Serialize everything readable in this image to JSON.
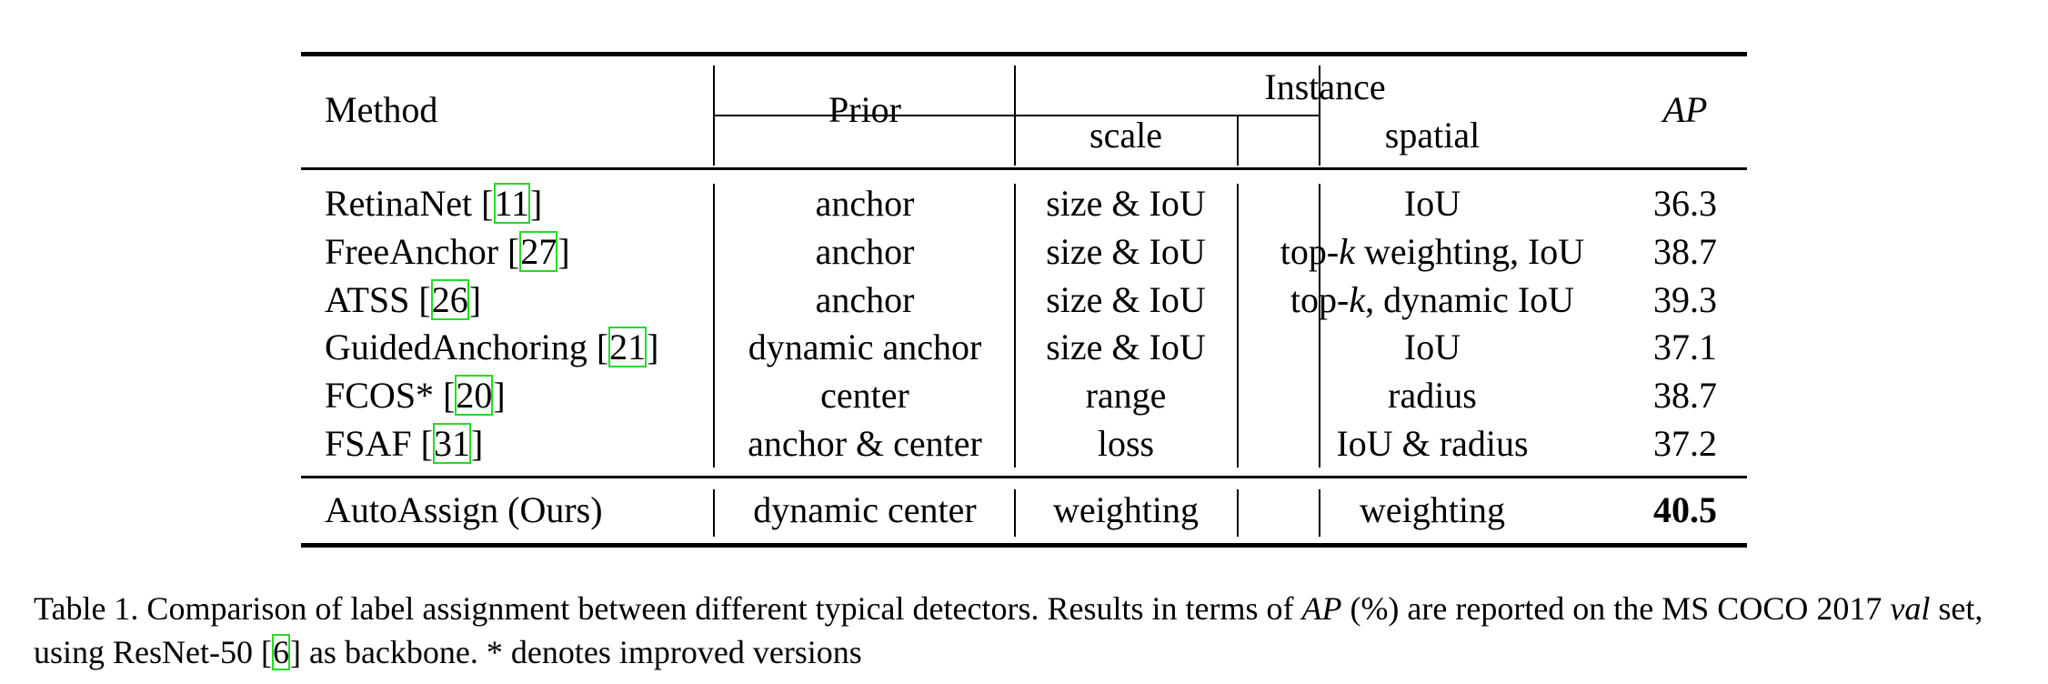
{
  "table": {
    "headers": {
      "method": "Method",
      "prior": "Prior",
      "instance": "Instance",
      "scale": "scale",
      "spatial": "spatial",
      "ap": "AP"
    },
    "rows": [
      {
        "method": "RetinaNet",
        "ref": "11",
        "prior": "anchor",
        "scale": "size & IoU",
        "spatial": "IoU",
        "ap": "36.3"
      },
      {
        "method": "FreeAnchor",
        "ref": "27",
        "prior": "anchor",
        "scale": "size & IoU",
        "spatial_a": "top-",
        "spatial_k": "k",
        "spatial_b": " weighting, IoU",
        "ap": "38.7"
      },
      {
        "method": "ATSS",
        "ref": "26",
        "prior": "anchor",
        "scale": "size & IoU",
        "spatial_a": "top-",
        "spatial_k": "k",
        "spatial_b": ", dynamic IoU",
        "ap": "39.3"
      },
      {
        "method": "GuidedAnchoring",
        "ref": "21",
        "prior": "dynamic anchor",
        "scale": "size & IoU",
        "spatial": "IoU",
        "ap": "37.1"
      },
      {
        "method": "FCOS*",
        "ref": "20",
        "prior": "center",
        "scale": "range",
        "spatial": "radius",
        "ap": "38.7"
      },
      {
        "method": "FSAF",
        "ref": "31",
        "prior": "anchor & center",
        "scale": "loss",
        "spatial": "IoU & radius",
        "ap": "37.2"
      }
    ],
    "ours": {
      "method": "AutoAssign (Ours)",
      "prior": "dynamic center",
      "scale": "weighting",
      "spatial": "weighting",
      "ap": "40.5"
    }
  },
  "caption": {
    "part1": "Table 1. Comparison of label assignment between different typical detectors. Results in terms of ",
    "ap": "AP",
    "part2": " (%) are reported on the MS COCO 2017 ",
    "val": "val",
    "part3": " set, using ResNet-50 [",
    "ref": "6",
    "part4": "] as backbone. * denotes improved versions"
  }
}
